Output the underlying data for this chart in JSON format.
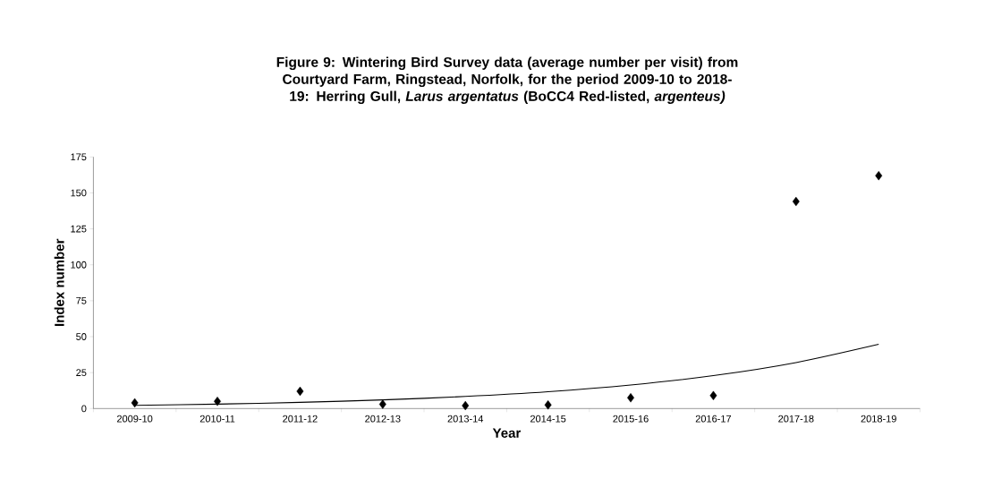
{
  "chart_data": {
    "type": "scatter",
    "title": "Figure 9: Wintering Bird Survey data (average number per visit) from Courtyard Farm, Ringstead, Norfolk, for the period 2009-10 to 2018-19: Herring Gull, *Larus argentatus* (BoCC4 Red-listed, *argenteus)*",
    "xlabel": "Year",
    "ylabel": "Index number",
    "categories": [
      "2009-10",
      "2010-11",
      "2011-12",
      "2012-13",
      "2013-14",
      "2014-15",
      "2015-16",
      "2016-17",
      "2017-18",
      "2018-19"
    ],
    "marker": "diamond",
    "series": [
      {
        "color": "#000000",
        "values": [
          4,
          5,
          12,
          3,
          2,
          2.5,
          7.5,
          9,
          144,
          162
        ]
      },
      {
        "type": "line",
        "color": "#000000",
        "marker": "none",
        "values": [
          2.2,
          3.1,
          4.3,
          6.0,
          8.4,
          11.7,
          16.4,
          22.9,
          32.0,
          44.7
        ]
      }
    ],
    "ylim": [
      0,
      175
    ],
    "yticks": [
      0,
      25,
      50,
      75,
      100,
      125,
      150,
      175
    ]
  }
}
